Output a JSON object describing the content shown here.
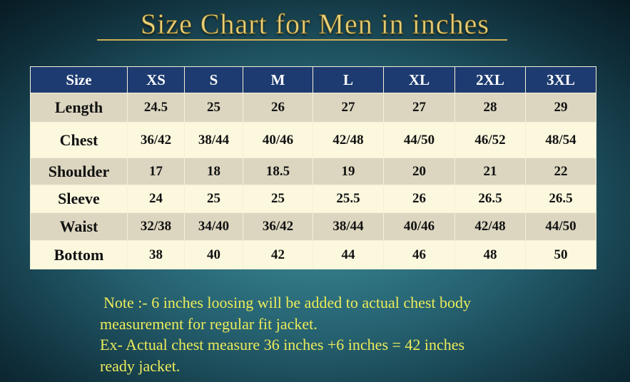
{
  "title": "Size Chart for Men in inches",
  "table": {
    "header": [
      "Size",
      "XS",
      "S",
      "M",
      "L",
      "XL",
      "2XL",
      "3XL"
    ],
    "rows": [
      [
        "Length",
        "24.5",
        "25",
        "26",
        "27",
        "27",
        "28",
        "29"
      ],
      [
        "Chest",
        "36/42",
        "38/44",
        "40/46",
        "42/48",
        "44/50",
        "46/52",
        "48/54"
      ],
      [
        "Shoulder",
        "17",
        "18",
        "18.5",
        "19",
        "20",
        "21",
        "22"
      ],
      [
        "Sleeve",
        "24",
        "25",
        "25",
        "25.5",
        "26",
        "26.5",
        "26.5"
      ],
      [
        "Waist",
        "32/38",
        "34/40",
        "36/42",
        "38/44",
        "40/46",
        "42/48",
        "44/50"
      ],
      [
        "Bottom",
        "38",
        "40",
        "42",
        "44",
        "46",
        "48",
        "50"
      ]
    ]
  },
  "note": {
    "lines": [
      "Note :- 6 inches loosing will be added to actual chest body",
      "measurement  for regular  fit jacket.",
      "Ex- Actual chest measure  36 inches +6 inches = 42 inches",
      "ready  jacket."
    ]
  }
}
